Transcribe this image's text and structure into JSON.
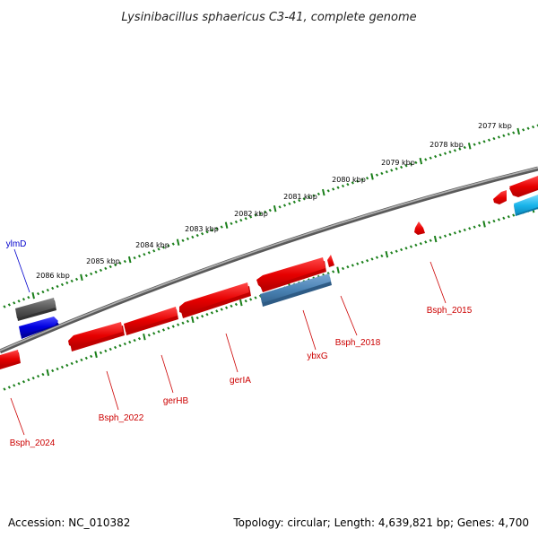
{
  "title": "Lysinibacillus sphaericus C3-41, complete genome",
  "accession_text": "Accession: NC_010382",
  "topology_text": "Topology: circular; Length: 4,639,821 bp; Genes: 4,700",
  "kbp_labels": [
    "2077 kbp",
    "2078 kbp",
    "2079 kbp",
    "2080 kbp",
    "2081 kbp",
    "2082 kbp",
    "2083 kbp",
    "2084 kbp",
    "2085 kbp",
    "2086 kbp"
  ],
  "gene_labels": {
    "ylmD": "ylmD",
    "Bsph_2015": "Bsph_2015",
    "Bsph_2018": "Bsph_2018",
    "ybxG": "ybxG",
    "gerIA": "gerIA",
    "gerHB": "gerHB",
    "Bsph_2022": "Bsph_2022",
    "Bsph_2024": "Bsph_2024"
  },
  "colors": {
    "backbone": "#777777",
    "tick": "#1a7f1a",
    "gene_red": "#ee1111",
    "gene_blue": "#1515dd",
    "gene_steel": "#4a82b4",
    "gene_cyan": "#22bbee",
    "gene_gray": "#555555",
    "label_red": "#cc0000",
    "label_blue": "#0000cc"
  }
}
